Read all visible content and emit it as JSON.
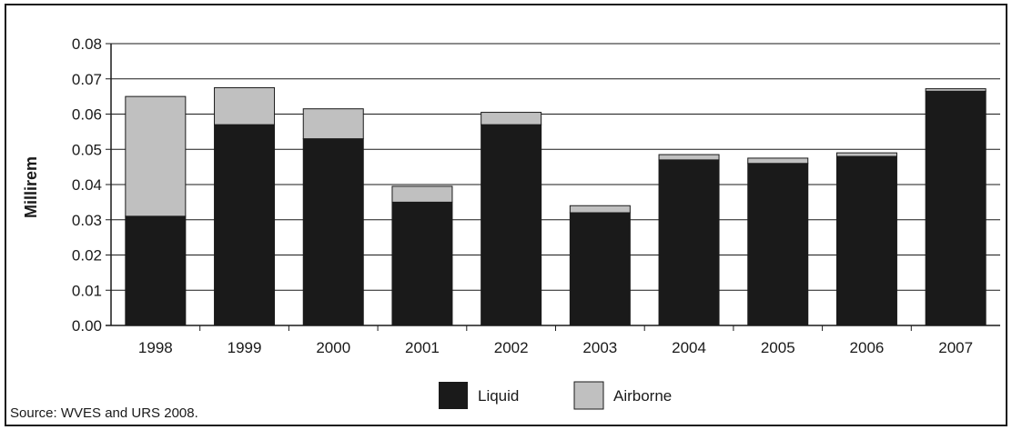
{
  "chart_data": {
    "type": "bar",
    "stacked": true,
    "categories": [
      "1998",
      "1999",
      "2000",
      "2001",
      "2002",
      "2003",
      "2004",
      "2005",
      "2006",
      "2007"
    ],
    "series": [
      {
        "name": "Liquid",
        "color": "#1a1a1a",
        "values": [
          0.031,
          0.057,
          0.053,
          0.035,
          0.057,
          0.032,
          0.047,
          0.046,
          0.048,
          0.0665
        ]
      },
      {
        "name": "Airborne",
        "color": "#c0c0c0",
        "values": [
          0.034,
          0.0105,
          0.0085,
          0.0045,
          0.0035,
          0.002,
          0.0015,
          0.0015,
          0.001,
          0.0007
        ]
      }
    ],
    "ylabel": "Millirem",
    "xlabel": "",
    "ylim": [
      0,
      0.08
    ],
    "yticks": [
      "0.00",
      "0.01",
      "0.02",
      "0.03",
      "0.04",
      "0.05",
      "0.06",
      "0.07",
      "0.08"
    ],
    "grid": true,
    "legend_position": "bottom-center",
    "source": "Source: WVES and URS 2008."
  }
}
